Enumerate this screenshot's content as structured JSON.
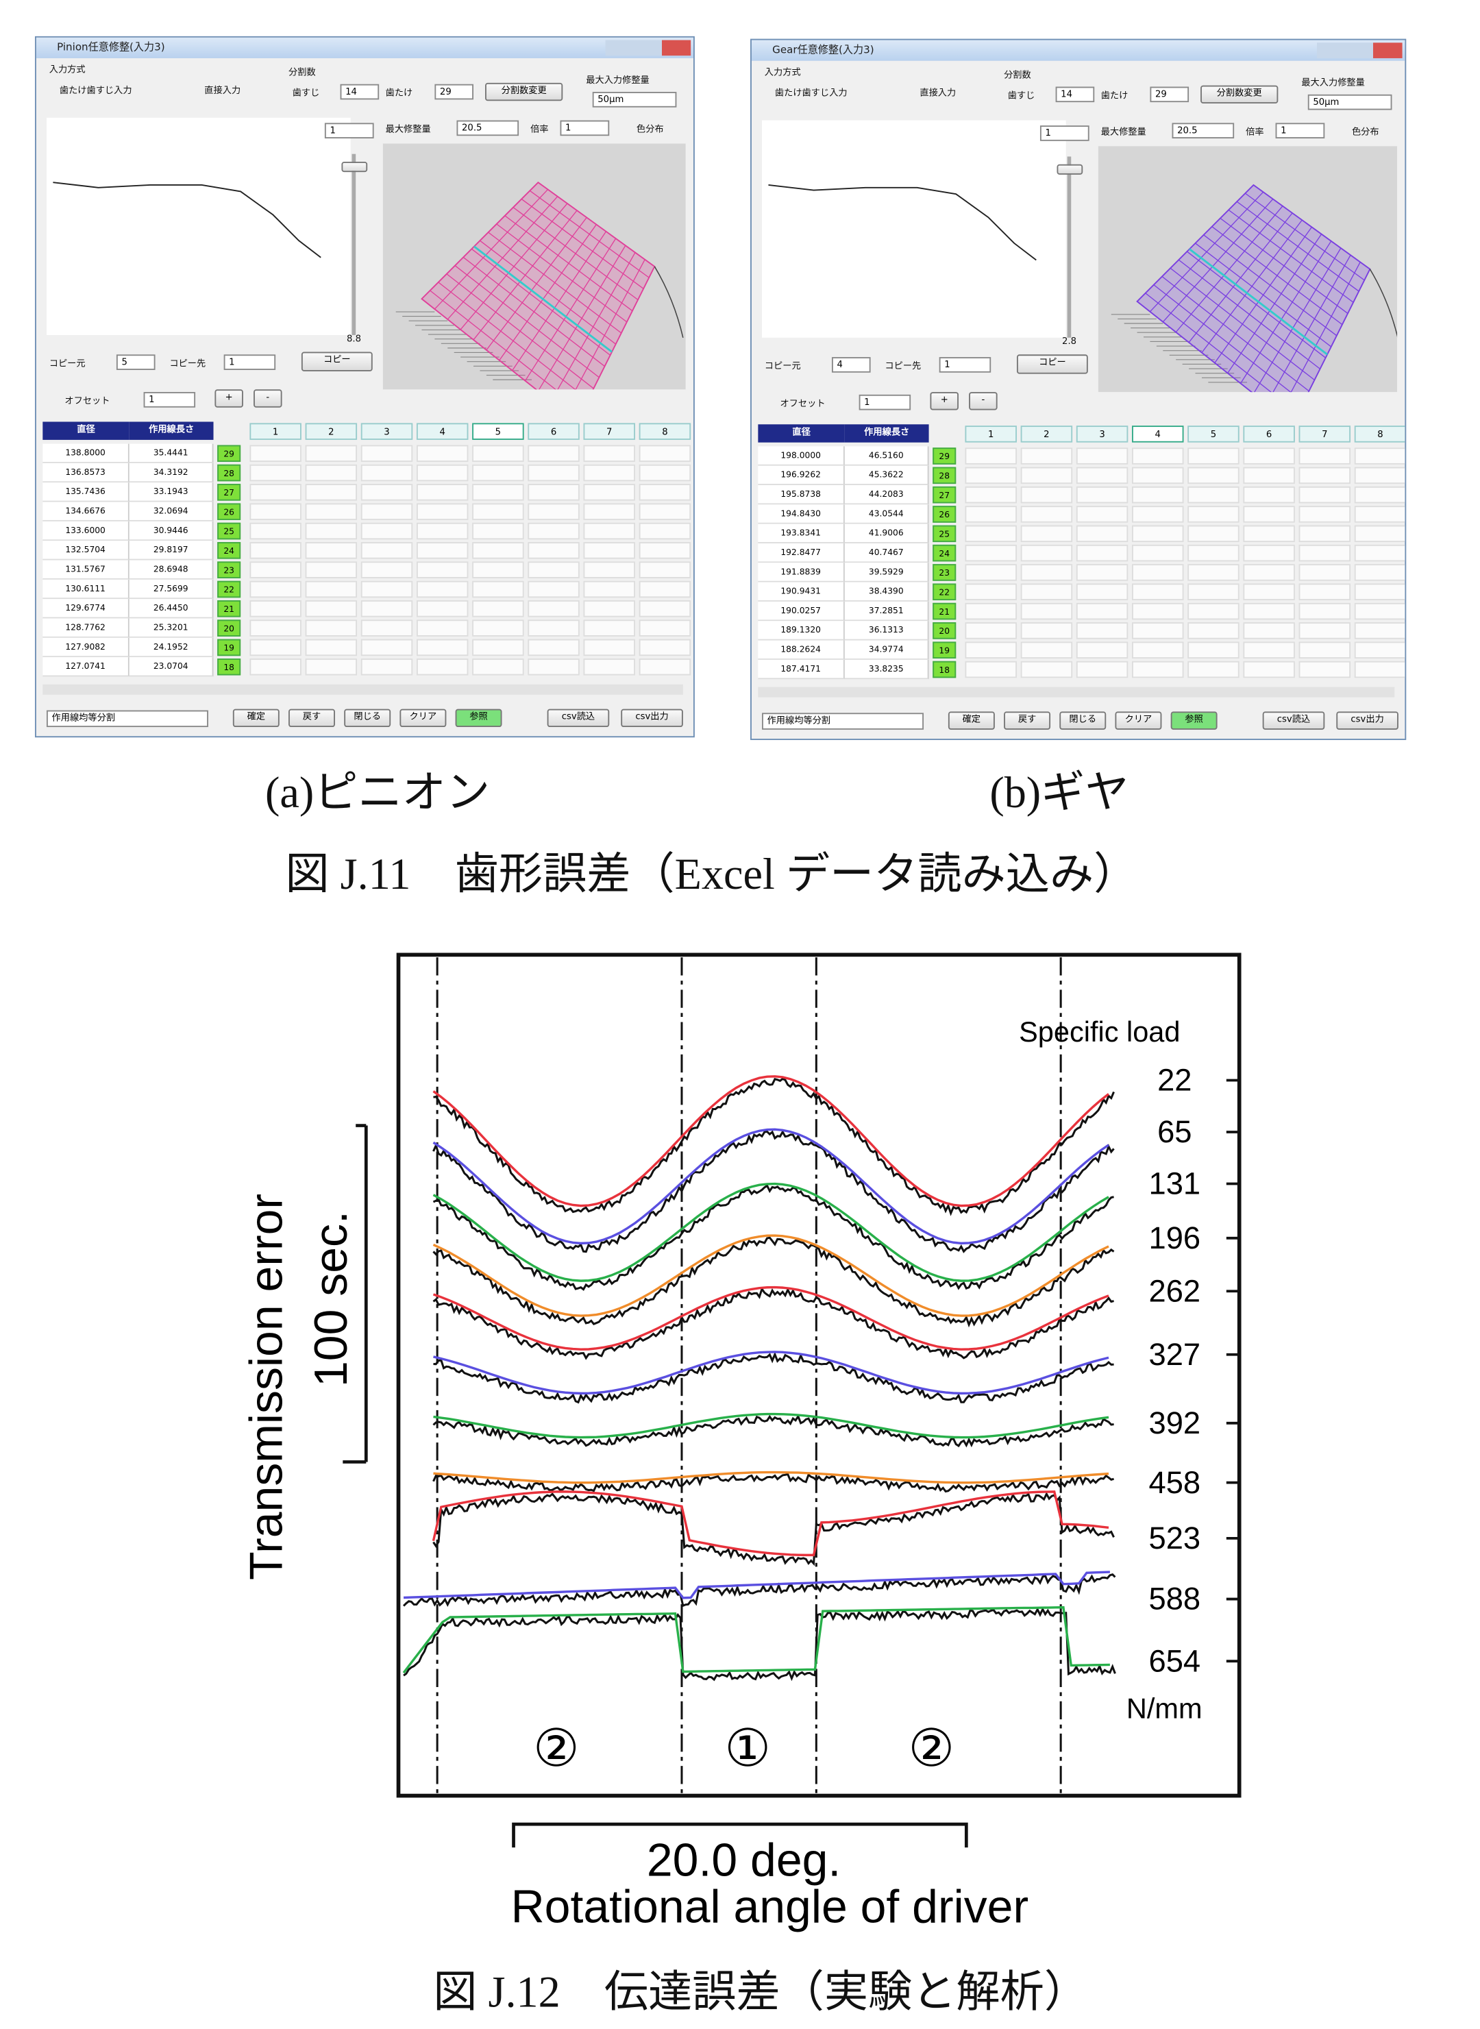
{
  "windows": [
    {
      "title": "Pinion任意修整(入力3)",
      "input_method": "入力方式",
      "radio1": "歯たけ歯すじ入力",
      "radio2": "直接入力",
      "divisions": "分割数",
      "lead_label": "歯すじ",
      "lead_value": "14",
      "profile_label": "歯たけ",
      "profile_value": "29",
      "change_button": "分割数変更",
      "max_input_label": "最大入力修整量",
      "max_input_value": "50μm",
      "view_select": "1",
      "max_mod_label": "最大修整量",
      "max_mod_value": "20.5",
      "scale_label": "倍率",
      "scale_value": "1",
      "color_dist": "色分布",
      "slider_value": "8.8",
      "copy_from_label": "コピー元",
      "copy_from_value": "5",
      "copy_to_label": "コピー先",
      "copy_to_value": "1",
      "copy_button": "コピー",
      "offset_label": "オフセット",
      "offset_value": "1",
      "plus": "+",
      "minus": "-",
      "table": {
        "header": [
          "直径",
          "作用線長さ"
        ],
        "columns": [
          "1",
          "2",
          "3",
          "4",
          "5",
          "6",
          "7",
          "8"
        ],
        "rows": [
          [
            "138.8000",
            "35.4441",
            "29"
          ],
          [
            "136.8573",
            "34.3192",
            "28"
          ],
          [
            "135.7436",
            "33.1943",
            "27"
          ],
          [
            "134.6676",
            "32.0694",
            "26"
          ],
          [
            "133.6000",
            "30.9446",
            "25"
          ],
          [
            "132.5704",
            "29.8197",
            "24"
          ],
          [
            "131.5767",
            "28.6948",
            "23"
          ],
          [
            "130.6111",
            "27.5699",
            "22"
          ],
          [
            "129.6774",
            "26.4450",
            "21"
          ],
          [
            "128.7762",
            "25.3201",
            "20"
          ],
          [
            "127.9082",
            "24.1952",
            "19"
          ],
          [
            "127.0741",
            "23.0704",
            "18"
          ]
        ]
      },
      "split_select": "作用線均等分割",
      "buttons": [
        "確定",
        "戻す",
        "閉じる",
        "クリア",
        "参照",
        "csv読込",
        "csv出力"
      ]
    },
    {
      "title": "Gear任意修整(入力3)",
      "input_method": "入力方式",
      "radio1": "歯たけ歯すじ入力",
      "radio2": "直接入力",
      "divisions": "分割数",
      "lead_label": "歯すじ",
      "lead_value": "14",
      "profile_label": "歯たけ",
      "profile_value": "29",
      "change_button": "分割数変更",
      "max_input_label": "最大入力修整量",
      "max_input_value": "50μm",
      "view_select": "1",
      "max_mod_label": "最大修整量",
      "max_mod_value": "20.5",
      "scale_label": "倍率",
      "scale_value": "1",
      "color_dist": "色分布",
      "slider_value": "2.8",
      "copy_from_label": "コピー元",
      "copy_from_value": "4",
      "copy_to_label": "コピー先",
      "copy_to_value": "1",
      "copy_button": "コピー",
      "offset_label": "オフセット",
      "offset_value": "1",
      "plus": "+",
      "minus": "-",
      "table": {
        "header": [
          "直径",
          "作用線長さ"
        ],
        "columns": [
          "1",
          "2",
          "3",
          "4",
          "5",
          "6",
          "7",
          "8"
        ],
        "rows": [
          [
            "198.0000",
            "46.5160",
            "29"
          ],
          [
            "196.9262",
            "45.3622",
            "28"
          ],
          [
            "195.8738",
            "44.2083",
            "27"
          ],
          [
            "194.8430",
            "43.0544",
            "26"
          ],
          [
            "193.8341",
            "41.9006",
            "25"
          ],
          [
            "192.8477",
            "40.7467",
            "24"
          ],
          [
            "191.8839",
            "39.5929",
            "23"
          ],
          [
            "190.9431",
            "38.4390",
            "22"
          ],
          [
            "190.0257",
            "37.2851",
            "21"
          ],
          [
            "189.1320",
            "36.1313",
            "20"
          ],
          [
            "188.2624",
            "34.9774",
            "19"
          ],
          [
            "187.4171",
            "33.8235",
            "18"
          ]
        ]
      },
      "split_select": "作用線均等分割",
      "buttons": [
        "確定",
        "戻す",
        "閉じる",
        "クリア",
        "参照",
        "csv読込",
        "csv出力"
      ]
    }
  ],
  "subcaptions": [
    "(a)ピニオン",
    "(b)ギヤ"
  ],
  "caption1": "図 J.11　歯形誤差（Excel データ読み込み）",
  "plot": {
    "y_label": "Transmission error",
    "scale_y": "100 sec.",
    "scale_x": "20.0 deg.",
    "x_label": "Rotational angle of driver",
    "legend_title": "Specific load",
    "loads": [
      22,
      65,
      131,
      196,
      262,
      327,
      392,
      458,
      523,
      588,
      654
    ],
    "unit": "N/mm",
    "regions": [
      "②",
      "①",
      "②"
    ]
  },
  "caption2": "図 J.12　伝達誤差（実験と解析）"
}
